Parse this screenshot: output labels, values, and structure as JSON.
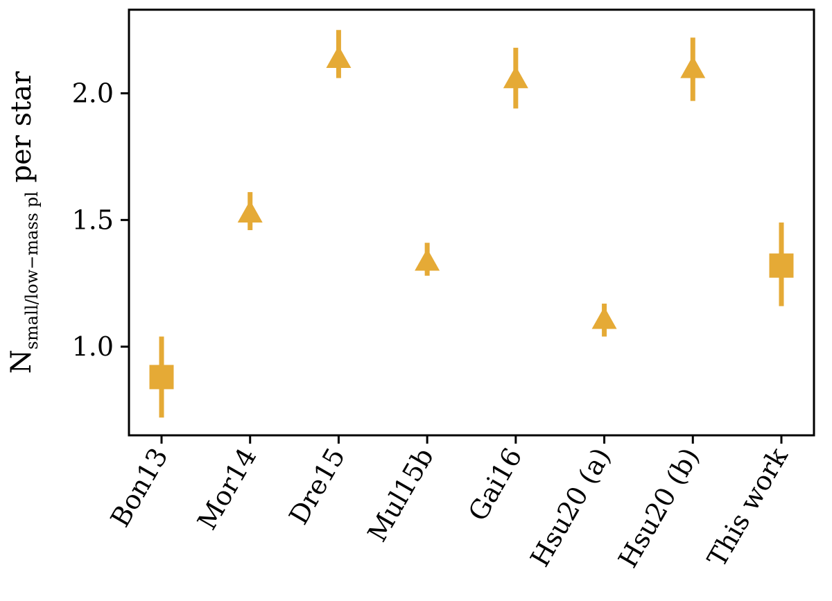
{
  "chart_data": {
    "type": "scatter",
    "title": "",
    "xlabel": "",
    "ylabel": {
      "main": "N",
      "subscript": "small/low−mass pl",
      "suffix": " per star"
    },
    "ylim": [
      0.65,
      2.33
    ],
    "yticks": [
      "1.0",
      "1.5",
      "2.0"
    ],
    "ytick_values": [
      1.0,
      1.5,
      2.0
    ],
    "grid": false,
    "marker_color": "#e5aa36",
    "categories": [
      "Bon13",
      "Mor14",
      "Dre15",
      "Mul15b",
      "Gai16",
      "Hsu20 (a)",
      "Hsu20 (b)",
      "This work"
    ],
    "points": [
      {
        "label": "Bon13",
        "y": 0.88,
        "err_low": 0.72,
        "err_high": 1.04,
        "marker": "square",
        "lower_limit": false
      },
      {
        "label": "Mor14",
        "y": 1.49,
        "err_low": 1.46,
        "err_high": 1.61,
        "marker": "triangle-up",
        "lower_limit": true
      },
      {
        "label": "Dre15",
        "y": 2.1,
        "err_low": 2.06,
        "err_high": 2.25,
        "marker": "triangle-up",
        "lower_limit": true
      },
      {
        "label": "Mul15b",
        "y": 1.3,
        "err_low": 1.28,
        "err_high": 1.41,
        "marker": "triangle-up",
        "lower_limit": true
      },
      {
        "label": "Gai16",
        "y": 2.02,
        "err_low": 1.94,
        "err_high": 2.18,
        "marker": "triangle-up",
        "lower_limit": true
      },
      {
        "label": "Hsu20 (a)",
        "y": 1.07,
        "err_low": 1.04,
        "err_high": 1.17,
        "marker": "triangle-up",
        "lower_limit": true
      },
      {
        "label": "Hsu20 (b)",
        "y": 2.06,
        "err_low": 1.97,
        "err_high": 2.22,
        "marker": "triangle-up",
        "lower_limit": true
      },
      {
        "label": "This work",
        "y": 1.32,
        "err_low": 1.16,
        "err_high": 1.49,
        "marker": "square",
        "lower_limit": false
      }
    ]
  }
}
